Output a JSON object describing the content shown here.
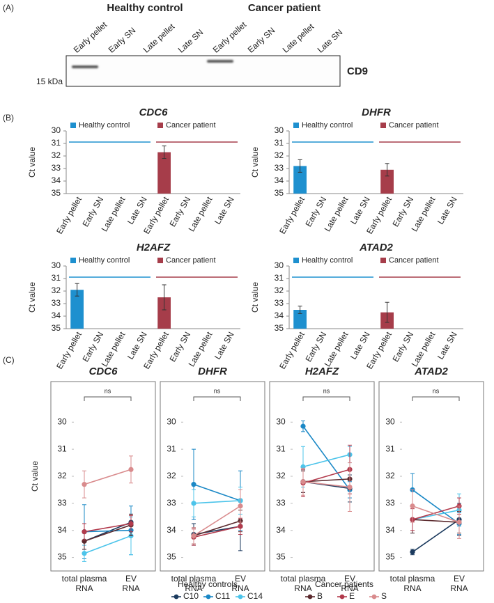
{
  "panel_labels": [
    "(A)",
    "(B)",
    "(C)"
  ],
  "blot": {
    "groups": [
      "Healthy control",
      "Cancer patient"
    ],
    "lanes": [
      "Early pellet",
      "Early SN",
      "Late pellet",
      "Late SN",
      "Early pellet",
      "Early SN",
      "Late pellet",
      "Late SN"
    ],
    "marker": "15 kDa",
    "protein": "CD9"
  },
  "legend_titles": [
    "Healthy controls",
    "Cancer patients"
  ],
  "chart_data": [
    {
      "type": "bar",
      "title": "CDC6",
      "ylabel": "Ct value",
      "categories": [
        "Early pellet",
        "Early SN",
        "Late pellet",
        "Late SN",
        "Early pellet",
        "Early SN",
        "Late pellet",
        "Late SN"
      ],
      "ylim": [
        35,
        30
      ],
      "yticks": [
        30,
        31,
        32,
        33,
        34,
        35
      ],
      "series": [
        {
          "name": "Healthy control",
          "color": "#1e90cf",
          "values": [
            null,
            null,
            null,
            null,
            null,
            null,
            null,
            null
          ],
          "errors": [
            null,
            null,
            null,
            null,
            null,
            null,
            null,
            null
          ]
        },
        {
          "name": "Cancer patient",
          "color": "#a63d4a",
          "values": [
            null,
            null,
            null,
            null,
            31.7,
            null,
            null,
            null
          ],
          "errors": [
            null,
            null,
            null,
            null,
            0.5,
            null,
            null,
            null
          ]
        }
      ]
    },
    {
      "type": "bar",
      "title": "DHFR",
      "ylabel": "Ct value",
      "categories": [
        "Early pellet",
        "Early SN",
        "Late pellet",
        "Late SN",
        "Early pellet",
        "Early SN",
        "Late pellet",
        "Late SN"
      ],
      "ylim": [
        35,
        30
      ],
      "yticks": [
        30,
        31,
        32,
        33,
        34,
        35
      ],
      "series": [
        {
          "name": "Healthy control",
          "color": "#1e90cf",
          "values": [
            32.8,
            null,
            null,
            null,
            null,
            null,
            null,
            null
          ],
          "errors": [
            0.5,
            null,
            null,
            null,
            null,
            null,
            null,
            null
          ]
        },
        {
          "name": "Cancer patient",
          "color": "#a63d4a",
          "values": [
            null,
            null,
            null,
            null,
            33.1,
            null,
            null,
            null
          ],
          "errors": [
            null,
            null,
            null,
            null,
            0.5,
            null,
            null,
            null
          ]
        }
      ]
    },
    {
      "type": "bar",
      "title": "H2AFZ",
      "ylabel": "Ct value",
      "categories": [
        "Early pellet",
        "Early SN",
        "Late pellet",
        "Late SN",
        "Early pellet",
        "Early SN",
        "Late pellet",
        "Late SN"
      ],
      "ylim": [
        35,
        30
      ],
      "yticks": [
        30,
        31,
        32,
        33,
        34,
        35
      ],
      "series": [
        {
          "name": "Healthy control",
          "color": "#1e90cf",
          "values": [
            31.9,
            null,
            null,
            null,
            null,
            null,
            null,
            null
          ],
          "errors": [
            0.5,
            null,
            null,
            null,
            null,
            null,
            null,
            null
          ]
        },
        {
          "name": "Cancer patient",
          "color": "#a63d4a",
          "values": [
            null,
            null,
            null,
            null,
            32.5,
            null,
            null,
            null
          ],
          "errors": [
            null,
            null,
            null,
            null,
            1.0,
            null,
            null,
            null
          ]
        }
      ]
    },
    {
      "type": "bar",
      "title": "ATAD2",
      "ylabel": "Ct value",
      "categories": [
        "Early pellet",
        "Early SN",
        "Late pellet",
        "Late SN",
        "Early pellet",
        "Early SN",
        "Late pellet",
        "Late SN"
      ],
      "ylim": [
        35,
        30
      ],
      "yticks": [
        30,
        31,
        32,
        33,
        34,
        35
      ],
      "series": [
        {
          "name": "Healthy control",
          "color": "#1e90cf",
          "values": [
            33.5,
            null,
            null,
            null,
            null,
            null,
            null,
            null
          ],
          "errors": [
            0.3,
            null,
            null,
            null,
            null,
            null,
            null,
            null
          ]
        },
        {
          "name": "Cancer patient",
          "color": "#a63d4a",
          "values": [
            null,
            null,
            null,
            null,
            33.7,
            null,
            null,
            null
          ],
          "errors": [
            null,
            null,
            null,
            null,
            0.8,
            null,
            null,
            null
          ]
        }
      ]
    },
    {
      "type": "line",
      "title": "CDC6",
      "ylabel": "Ct value",
      "annotation": "ns",
      "categories": [
        "total plasma RNA",
        "EV RNA"
      ],
      "ylim": [
        35.5,
        28.5
      ],
      "yticks": [
        30,
        31,
        32,
        33,
        34,
        35
      ],
      "series": [
        {
          "name": "C10",
          "color": "#1b3a5e",
          "values": [
            34.4,
            33.7
          ],
          "errors": [
            0.3,
            0.3
          ]
        },
        {
          "name": "C11",
          "color": "#1a88c6",
          "values": [
            34.05,
            34.0
          ],
          "errors": [
            1.0,
            0.9
          ]
        },
        {
          "name": "C14",
          "color": "#4cc4ea",
          "values": [
            34.85,
            34.2
          ],
          "errors": [
            0.3,
            0.7
          ]
        },
        {
          "name": "B",
          "color": "#5b2a2e",
          "values": [
            34.4,
            33.8
          ],
          "errors": [
            0.3,
            0.4
          ]
        },
        {
          "name": "E",
          "color": "#b23a4c",
          "values": [
            34.05,
            33.75
          ],
          "errors": [
            0.3,
            0.3
          ]
        },
        {
          "name": "S",
          "color": "#d98b8d",
          "values": [
            32.3,
            31.75
          ],
          "errors": [
            0.5,
            0.5
          ]
        }
      ]
    },
    {
      "type": "line",
      "title": "DHFR",
      "annotation": "ns",
      "categories": [
        "total plasma RNA",
        "EV RNA"
      ],
      "ylim": [
        35.5,
        28.5
      ],
      "yticks": [
        30,
        31,
        32,
        33,
        34,
        35
      ],
      "series": [
        {
          "name": "C10",
          "color": "#1b3a5e",
          "values": [
            34.15,
            33.85
          ],
          "errors": [
            0.4,
            0.9
          ]
        },
        {
          "name": "C11",
          "color": "#1a88c6",
          "values": [
            32.3,
            32.9
          ],
          "errors": [
            1.3,
            1.1
          ]
        },
        {
          "name": "C14",
          "color": "#4cc4ea",
          "values": [
            33.0,
            32.9
          ],
          "errors": [
            0.5,
            0.5
          ]
        },
        {
          "name": "B",
          "color": "#5b2a2e",
          "values": [
            34.2,
            33.65
          ],
          "errors": [
            0.3,
            0.4
          ]
        },
        {
          "name": "E",
          "color": "#b23a4c",
          "values": [
            34.25,
            33.85
          ],
          "errors": [
            0.3,
            0.3
          ]
        },
        {
          "name": "S",
          "color": "#d98b8d",
          "values": [
            34.2,
            33.1
          ],
          "errors": [
            0.3,
            0.6
          ]
        }
      ]
    },
    {
      "type": "line",
      "title": "H2AFZ",
      "annotation": "ns",
      "categories": [
        "total plasma RNA",
        "EV RNA"
      ],
      "ylim": [
        35.5,
        28.5
      ],
      "yticks": [
        30,
        31,
        32,
        33,
        34,
        35
      ],
      "series": [
        {
          "name": "C10",
          "color": "#1b3a5e",
          "values": [
            32.2,
            32.45
          ],
          "errors": [
            0.4,
            0.5
          ]
        },
        {
          "name": "C11",
          "color": "#1a88c6",
          "values": [
            30.15,
            32.5
          ],
          "errors": [
            0.2,
            0.3
          ]
        },
        {
          "name": "C14",
          "color": "#4cc4ea",
          "values": [
            31.65,
            31.2
          ],
          "errors": [
            0.75,
            0.3
          ]
        },
        {
          "name": "B",
          "color": "#5b2a2e",
          "values": [
            32.2,
            32.1
          ],
          "errors": [
            0.4,
            0.4
          ]
        },
        {
          "name": "E",
          "color": "#b23a4c",
          "values": [
            32.25,
            31.75
          ],
          "errors": [
            0.5,
            0.9
          ]
        },
        {
          "name": "S",
          "color": "#d98b8d",
          "values": [
            32.2,
            32.4
          ],
          "errors": [
            0.5,
            0.9
          ]
        }
      ]
    },
    {
      "type": "line",
      "title": "ATAD2",
      "annotation": "ns",
      "categories": [
        "total plasma RNA",
        "EV RNA"
      ],
      "ylim": [
        35.5,
        28.5
      ],
      "yticks": [
        30,
        31,
        32,
        33,
        34,
        35
      ],
      "series": [
        {
          "name": "C10",
          "color": "#1b3a5e",
          "values": [
            34.8,
            33.6
          ],
          "errors": [
            0.1,
            0.6
          ]
        },
        {
          "name": "C11",
          "color": "#1a88c6",
          "values": [
            32.5,
            33.75
          ],
          "errors": [
            0.6,
            0.4
          ]
        },
        {
          "name": "C14",
          "color": "#4cc4ea",
          "values": [
            33.6,
            33.25
          ],
          "errors": [
            0.5,
            0.6
          ]
        },
        {
          "name": "B",
          "color": "#5b2a2e",
          "values": [
            33.6,
            33.7
          ],
          "errors": [
            0.5,
            0.4
          ]
        },
        {
          "name": "E",
          "color": "#b23a4c",
          "values": [
            33.6,
            33.1
          ],
          "errors": [
            0.4,
            0.3
          ]
        },
        {
          "name": "S",
          "color": "#d98b8d",
          "values": [
            33.1,
            33.7
          ],
          "errors": [
            0.6,
            0.6
          ]
        }
      ]
    }
  ]
}
